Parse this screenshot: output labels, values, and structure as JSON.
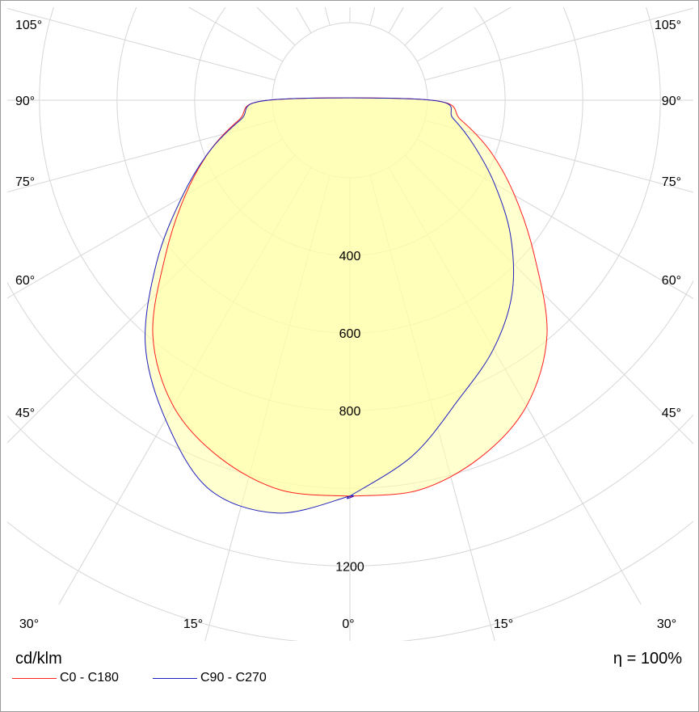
{
  "chart_data": {
    "type": "polar",
    "unit_label": "cd/klm",
    "efficiency_label": "η = 100%",
    "angle_labels": [
      "105°",
      "90°",
      "75°",
      "60°",
      "45°",
      "30°",
      "15°",
      "0°"
    ],
    "radial_ticks": [
      400,
      600,
      800,
      1200
    ],
    "rmax": 1400,
    "grid": true,
    "colors": {
      "fill": "#ffffa8",
      "grid": "#d6d6d6",
      "C0": "#ff2020",
      "C90": "#2020c0"
    },
    "series": [
      {
        "name": "C0 - C180",
        "color": "#ff2020",
        "gamma": [
          0,
          10,
          20,
          30,
          40,
          50,
          60,
          70,
          80,
          90
        ],
        "right": [
          1020,
          1020,
          980,
          910,
          790,
          620,
          490,
          385,
          290,
          210
        ],
        "left": [
          1020,
          1020,
          980,
          910,
          790,
          620,
          490,
          385,
          290,
          210
        ]
      },
      {
        "name": "C90 - C270",
        "color": "#2020c0",
        "gamma": [
          0,
          10,
          20,
          30,
          40,
          50,
          60,
          70,
          80,
          90
        ],
        "right": [
          1020,
          930,
          820,
          740,
          650,
          540,
          430,
          340,
          270,
          210
        ],
        "left": [
          1020,
          1080,
          1065,
          950,
          820,
          650,
          500,
          385,
          285,
          210
        ]
      }
    ]
  }
}
